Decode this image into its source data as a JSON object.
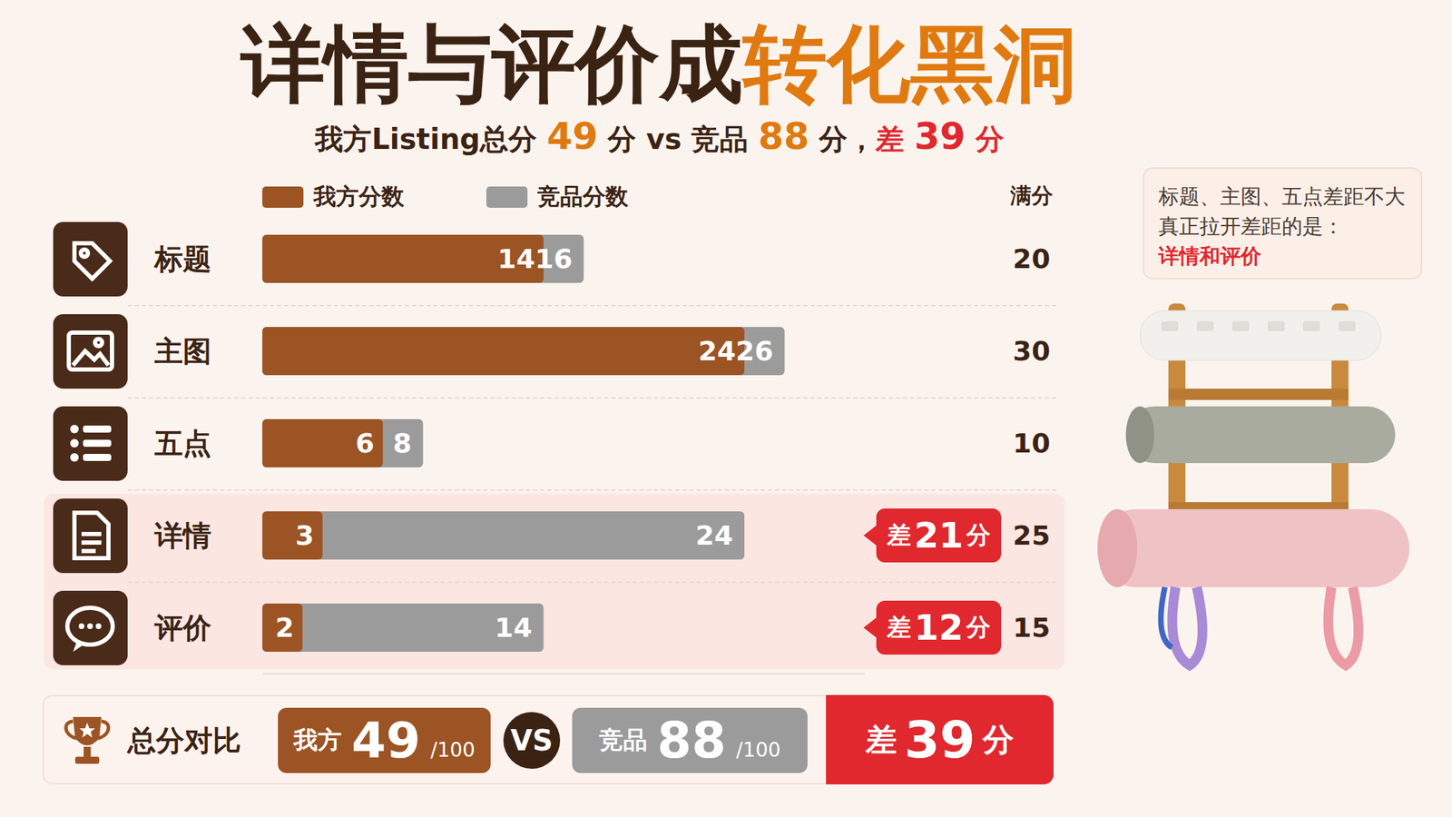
{
  "chart_data": {
    "type": "bar",
    "orientation": "horizontal",
    "title": "详情与评价成转化黑洞",
    "title_highlight": "转化黑洞",
    "subtitle": "我方Listing总分 49 分 vs 竞品 88 分，差 39 分",
    "categories": [
      "标题",
      "主图",
      "五点",
      "详情",
      "评价"
    ],
    "series": [
      {
        "name": "我方分数",
        "color": "#9c5424",
        "values": [
          14,
          24,
          6,
          3,
          2
        ]
      },
      {
        "name": "竞品分数",
        "color": "#9b9b9b",
        "values": [
          16,
          26,
          8,
          24,
          14
        ]
      }
    ],
    "full_score_label": "满分",
    "full_scores": [
      20,
      30,
      10,
      25,
      15
    ],
    "xlim": [
      0,
      30
    ],
    "tick_labels": false,
    "data_labels": true,
    "legend": "top",
    "annotations": [
      {
        "category": "详情",
        "text": "差 21 分"
      },
      {
        "category": "评价",
        "text": "差 12 分"
      }
    ],
    "note": [
      "标题、主图、五点差距不大",
      "真正拉开差距的是：",
      "详情和评价"
    ],
    "totals": {
      "label": "总分对比",
      "items": [
        {
          "name": "我方",
          "value": 49,
          "suffix": "/100"
        },
        {
          "name": "竞品",
          "value": 88,
          "suffix": "/100"
        }
      ],
      "vs": "VS",
      "difference": "差 39 分"
    }
  }
}
